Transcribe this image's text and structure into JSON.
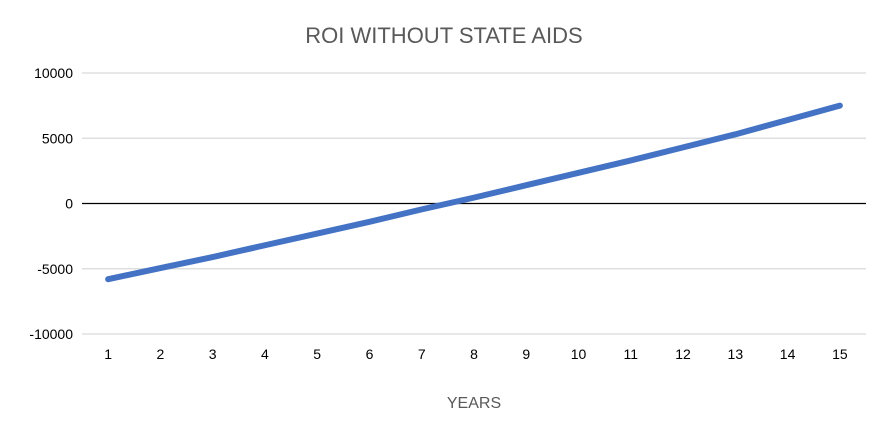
{
  "chart_data": {
    "type": "line",
    "title": "ROI WITHOUT STATE AIDS",
    "xlabel": "YEARS",
    "ylabel": "",
    "x": [
      1,
      2,
      3,
      4,
      5,
      6,
      7,
      8,
      9,
      10,
      11,
      12,
      13,
      14,
      15
    ],
    "series": [
      {
        "color": "#4472C4",
        "values": [
          -5800,
          -4950,
          -4100,
          -3200,
          -2300,
          -1400,
          -450,
          450,
          1400,
          2350,
          3300,
          4300,
          5300,
          6400,
          7500
        ]
      }
    ],
    "ylim": [
      -10000,
      10000
    ],
    "yticks": [
      10000,
      5000,
      0,
      -5000,
      -10000
    ],
    "grid": true,
    "legend": "none"
  }
}
